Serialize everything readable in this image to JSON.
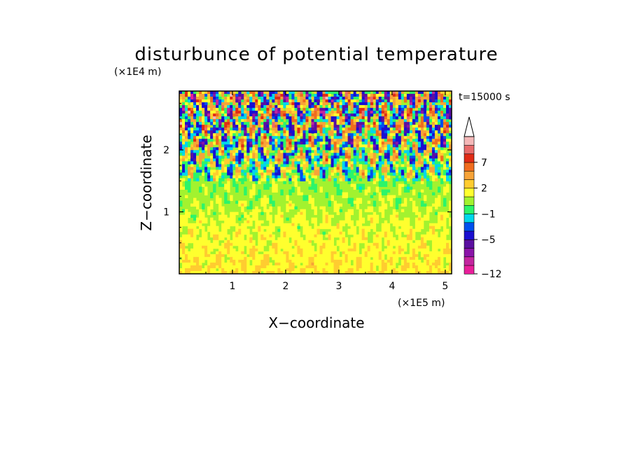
{
  "chart_data": {
    "type": "heatmap",
    "title": "disturbunce of potential temperature",
    "time_label": "t=15000 s",
    "xlabel": "X−coordinate",
    "ylabel": "Z−coordinate",
    "x_unit": "(×1E5 m)",
    "y_unit": "(×1E4 m)",
    "xlim": [
      0,
      5.12
    ],
    "ylim": [
      0,
      2.95
    ],
    "x_ticks": [
      1,
      2,
      3,
      4,
      5
    ],
    "y_ticks": [
      1,
      2
    ],
    "colorbar": {
      "levels": [
        -12,
        -11,
        -9,
        -7,
        -5,
        -3,
        -2,
        -1,
        0,
        1,
        2,
        3,
        5,
        7,
        9,
        11
      ],
      "tick_labels": [
        "−12",
        "−5",
        "−1",
        "2",
        "7"
      ],
      "tick_values": [
        -12,
        -5,
        -1,
        2,
        7
      ],
      "colors": [
        "#e81e9a",
        "#c3259f",
        "#8a14a8",
        "#5b0fa0",
        "#1a0fd0",
        "#0050ee",
        "#00d7ea",
        "#2cf56a",
        "#a2f22f",
        "#ffff2e",
        "#ffcc30",
        "#f7a338",
        "#f06c1e",
        "#e02b15",
        "#e86b6b",
        "#f4b8b8"
      ],
      "extend": "max"
    },
    "grid": false
  }
}
